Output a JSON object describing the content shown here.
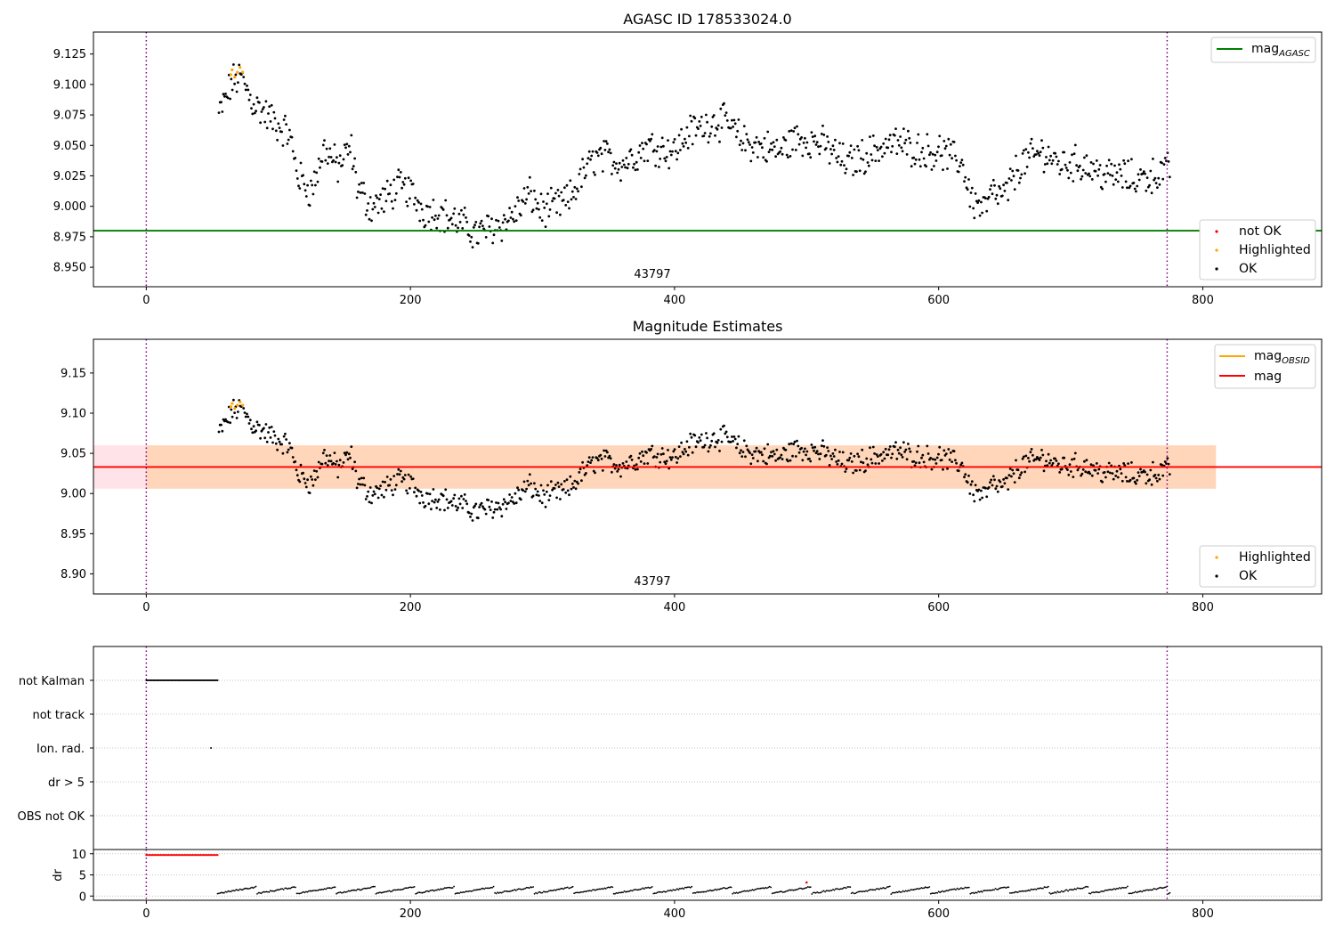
{
  "chart_data": [
    {
      "type": "scatter",
      "title": "AGASC ID 178533024.0",
      "annotation": "43797",
      "xlim": [
        -40,
        890
      ],
      "ylim": [
        8.934,
        9.143
      ],
      "xticks": [
        "0",
        "200",
        "400",
        "600",
        "800"
      ],
      "yticks": [
        "8.950",
        "8.975",
        "9.000",
        "9.025",
        "9.050",
        "9.075",
        "9.100",
        "9.125"
      ],
      "hlines": [
        {
          "y": 8.98,
          "color": "#008000",
          "label": "mag_AGASC"
        }
      ],
      "vlines": [
        0,
        773
      ],
      "legend_lines": [
        {
          "label": "mag",
          "sub": "AGASC",
          "color": "#008000"
        }
      ],
      "legend_points": [
        {
          "label": "not OK",
          "color": "#ff0000"
        },
        {
          "label": "Highlighted",
          "color": "#ffa500"
        },
        {
          "label": "OK",
          "color": "#000000"
        }
      ],
      "highlighted": [
        [
          64,
          9.108
        ],
        [
          65,
          9.112
        ],
        [
          67,
          9.106
        ],
        [
          69,
          9.11
        ],
        [
          71,
          9.114
        ],
        [
          73,
          9.11
        ]
      ],
      "curve": [
        [
          55,
          9.075
        ],
        [
          60,
          9.088
        ],
        [
          65,
          9.102
        ],
        [
          72,
          9.106
        ],
        [
          80,
          9.086
        ],
        [
          90,
          9.076
        ],
        [
          100,
          9.066
        ],
        [
          108,
          9.06
        ],
        [
          115,
          9.025
        ],
        [
          125,
          9.012
        ],
        [
          135,
          9.048
        ],
        [
          145,
          9.032
        ],
        [
          155,
          9.048
        ],
        [
          160,
          9.015
        ],
        [
          170,
          9.0
        ],
        [
          180,
          9.005
        ],
        [
          190,
          9.016
        ],
        [
          200,
          9.012
        ],
        [
          210,
          8.996
        ],
        [
          220,
          8.996
        ],
        [
          230,
          8.99
        ],
        [
          240,
          8.985
        ],
        [
          250,
          8.977
        ],
        [
          260,
          8.982
        ],
        [
          270,
          8.986
        ],
        [
          280,
          8.995
        ],
        [
          290,
          9.01
        ],
        [
          300,
          8.996
        ],
        [
          310,
          9.0
        ],
        [
          320,
          9.005
        ],
        [
          330,
          9.025
        ],
        [
          340,
          9.04
        ],
        [
          350,
          9.04
        ],
        [
          360,
          9.035
        ],
        [
          370,
          9.042
        ],
        [
          380,
          9.05
        ],
        [
          390,
          9.048
        ],
        [
          400,
          9.045
        ],
        [
          410,
          9.06
        ],
        [
          420,
          9.065
        ],
        [
          430,
          9.07
        ],
        [
          440,
          9.068
        ],
        [
          450,
          9.055
        ],
        [
          460,
          9.05
        ],
        [
          470,
          9.048
        ],
        [
          480,
          9.045
        ],
        [
          490,
          9.055
        ],
        [
          500,
          9.055
        ],
        [
          510,
          9.052
        ],
        [
          520,
          9.045
        ],
        [
          530,
          9.035
        ],
        [
          540,
          9.04
        ],
        [
          550,
          9.045
        ],
        [
          560,
          9.05
        ],
        [
          570,
          9.052
        ],
        [
          580,
          9.048
        ],
        [
          590,
          9.045
        ],
        [
          600,
          9.045
        ],
        [
          610,
          9.04
        ],
        [
          618,
          9.035
        ],
        [
          625,
          9.005
        ],
        [
          635,
          8.998
        ],
        [
          640,
          9.01
        ],
        [
          650,
          9.008
        ],
        [
          660,
          9.032
        ],
        [
          670,
          9.04
        ],
        [
          680,
          9.045
        ],
        [
          690,
          9.035
        ],
        [
          700,
          9.035
        ],
        [
          710,
          9.035
        ],
        [
          720,
          9.028
        ],
        [
          730,
          9.025
        ],
        [
          740,
          9.025
        ],
        [
          750,
          9.022
        ],
        [
          760,
          9.025
        ],
        [
          770,
          9.028
        ],
        [
          775,
          9.03
        ]
      ]
    },
    {
      "type": "scatter",
      "title": "Magnitude Estimates",
      "annotation": "43797",
      "xlim": [
        -40,
        890
      ],
      "ylim": [
        8.875,
        9.192
      ],
      "xticks": [
        "0",
        "200",
        "400",
        "600",
        "800"
      ],
      "yticks": [
        "8.90",
        "8.95",
        "9.00",
        "9.05",
        "9.10",
        "9.15"
      ],
      "hlines": [
        {
          "y": 9.033,
          "color": "#ff0000",
          "label": "mag"
        }
      ],
      "bands": [
        {
          "y0": 9.006,
          "y1": 9.06,
          "x0": -40,
          "x1": 810,
          "color": "#ffc0cb"
        },
        {
          "y0": 9.006,
          "y1": 9.06,
          "x0": 0,
          "x1": 810,
          "color": "#ffa500"
        }
      ],
      "vlines": [
        0,
        773
      ],
      "legend_lines": [
        {
          "label": "mag",
          "sub": "OBSID",
          "color": "#ffa500"
        },
        {
          "label": "mag",
          "sub": "",
          "color": "#ff0000"
        }
      ],
      "legend_points": [
        {
          "label": "Highlighted",
          "color": "#ffa500"
        },
        {
          "label": "OK",
          "color": "#000000"
        }
      ]
    },
    {
      "type": "scatter",
      "ylabel": "dr",
      "xlim": [
        -40,
        890
      ],
      "categories": [
        "not Kalman",
        "not track",
        "Ion. rad.",
        "dr > 5",
        "OBS not OK"
      ],
      "flags": {
        "not Kalman": [
          [
            0,
            54
          ]
        ],
        "Ion. rad.": [
          [
            49,
            49
          ]
        ]
      },
      "dr_ylim": [
        -1,
        11
      ],
      "dr_yticks": [
        "0",
        "5",
        "10"
      ],
      "xticks": [
        "0",
        "200",
        "400",
        "600",
        "800"
      ],
      "dr_high": {
        "x0": 0,
        "x1": 54,
        "y": 9.7,
        "color": "#ff0000"
      },
      "dr_red_point": [
        500,
        3.2
      ],
      "vlines": [
        0,
        773
      ]
    }
  ]
}
